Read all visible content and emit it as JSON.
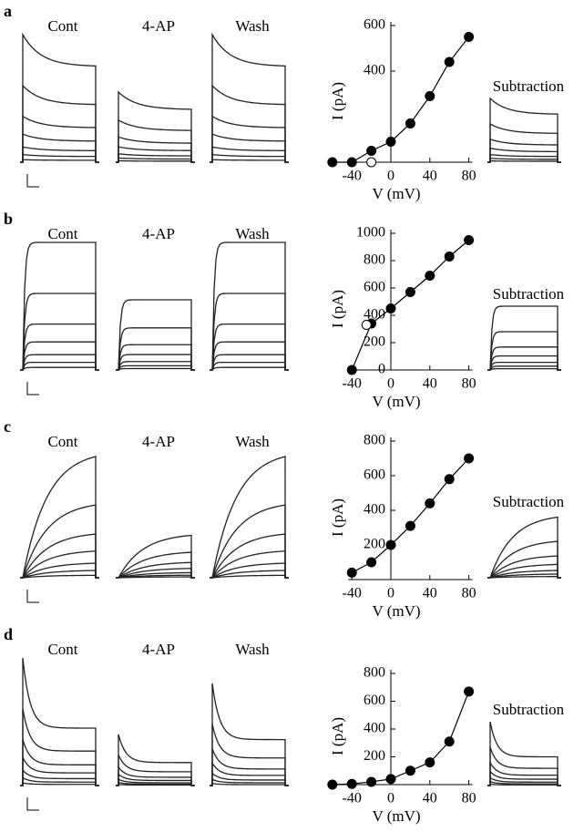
{
  "chart_data": [
    {
      "type": "line",
      "panel": "a",
      "trace_labels": [
        "Cont",
        "4-AP",
        "Wash"
      ],
      "subtraction_label": "Subtraction",
      "x_label": "V (mV)",
      "y_label": "I (pA)",
      "xlim": [
        -60,
        80
      ],
      "ylim": [
        0,
        600
      ],
      "xticks": [
        -40,
        0,
        40,
        80
      ],
      "yticks": [
        400,
        600
      ],
      "series": [
        {
          "marker": "filled",
          "x": [
            -60,
            -40,
            -20,
            0,
            20,
            40,
            60,
            80
          ],
          "values": [
            0,
            0,
            50,
            90,
            170,
            290,
            440,
            550
          ]
        },
        {
          "marker": "open",
          "x": [
            -20
          ],
          "values": [
            0
          ]
        }
      ]
    },
    {
      "type": "line",
      "panel": "b",
      "trace_labels": [
        "Cont",
        "4-AP",
        "Wash"
      ],
      "subtraction_label": "Subtraction",
      "x_label": "V (mV)",
      "y_label": "I (pA)",
      "xlim": [
        -40,
        80
      ],
      "ylim": [
        0,
        1000
      ],
      "xticks": [
        -40,
        0,
        40,
        80
      ],
      "yticks": [
        0,
        200,
        400,
        600,
        800,
        1000
      ],
      "series": [
        {
          "marker": "filled",
          "x": [
            -40,
            -20,
            0,
            20,
            40,
            60,
            80
          ],
          "values": [
            0,
            340,
            450,
            570,
            690,
            830,
            950
          ]
        },
        {
          "marker": "open",
          "x": [
            -25
          ],
          "values": [
            330
          ]
        }
      ]
    },
    {
      "type": "line",
      "panel": "c",
      "trace_labels": [
        "Cont",
        "4-AP",
        "Wash"
      ],
      "subtraction_label": "Subtraction",
      "x_label": "V (mV)",
      "y_label": "I (pA)",
      "xlim": [
        -40,
        80
      ],
      "ylim": [
        0,
        800
      ],
      "xticks": [
        -40,
        0,
        40,
        80
      ],
      "yticks": [
        200,
        400,
        600,
        800
      ],
      "series": [
        {
          "marker": "filled",
          "x": [
            -40,
            -20,
            0,
            20,
            40,
            60,
            80
          ],
          "values": [
            40,
            100,
            200,
            310,
            440,
            580,
            700
          ]
        }
      ]
    },
    {
      "type": "line",
      "panel": "d",
      "trace_labels": [
        "Cont",
        "4-AP",
        "Wash"
      ],
      "subtraction_label": "Subtraction",
      "x_label": "V (mV)",
      "y_label": "I (pA)",
      "xlim": [
        -60,
        80
      ],
      "ylim": [
        0,
        800
      ],
      "xticks": [
        -40,
        0,
        40,
        80
      ],
      "yticks": [
        200,
        400,
        600,
        800
      ],
      "series": [
        {
          "marker": "filled",
          "x": [
            -60,
            -40,
            -20,
            0,
            20,
            40,
            60,
            80
          ],
          "values": [
            0,
            5,
            20,
            40,
            100,
            160,
            310,
            670
          ]
        }
      ]
    }
  ]
}
